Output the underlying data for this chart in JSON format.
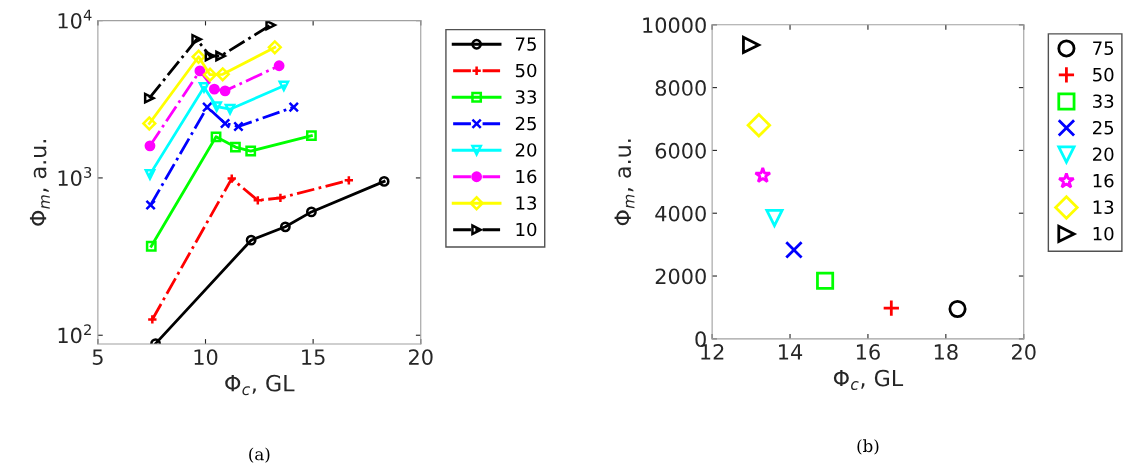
{
  "chart_data": [
    {
      "type": "line",
      "xlabel": "Φ$_{c}$, GL",
      "ylabel": "Φ$_{m}$, a.u.",
      "log": "y",
      "xlim": [
        5,
        20
      ],
      "xticks": [
        5,
        10,
        15,
        20
      ],
      "ylim": [
        88,
        10000
      ],
      "yticks": [
        {
          "value": 100,
          "label": "10$^{2}$"
        },
        {
          "value": 1000,
          "label": "10$^{3}$"
        },
        {
          "value": 10000,
          "label": "10$^{4}$"
        }
      ],
      "grid": false,
      "legend": "right",
      "annotations": [
        "(a)"
      ],
      "series": [
        {
          "name": "75",
          "color": "#000000",
          "marker": "circle",
          "line_style": "solid",
          "x": [
            7.68,
            12.12,
            13.71,
            14.92,
            18.3
          ],
          "values": [
            88.5,
            402,
            489,
            608,
            950
          ]
        },
        {
          "name": "50",
          "color": "#ff0000",
          "marker": "plus",
          "line_style": "dashdot",
          "x": [
            7.53,
            11.22,
            12.43,
            13.48,
            16.66
          ],
          "values": [
            126,
            990,
            720,
            746,
            965
          ]
        },
        {
          "name": "33",
          "color": "#00ff00",
          "marker": "square",
          "line_style": "solid",
          "x": [
            7.48,
            10.49,
            11.39,
            12.1,
            14.92
          ],
          "values": [
            368,
            1825,
            1570,
            1482,
            1855
          ]
        },
        {
          "name": "25",
          "color": "#0000ff",
          "marker": "x",
          "line_style": "dashdot",
          "x": [
            7.45,
            10.08,
            10.91,
            11.53,
            14.1
          ],
          "values": [
            673,
            2818,
            2218,
            2122,
            2818
          ]
        },
        {
          "name": "20",
          "color": "#00ffff",
          "marker": "triangle_down",
          "line_style": "solid",
          "x": [
            7.42,
            9.93,
            10.52,
            11.14,
            13.64
          ],
          "values": [
            1052,
            3767,
            2838,
            2734,
            3845
          ]
        },
        {
          "name": "16",
          "color": "#ff00ff",
          "marker": "dot",
          "line_style": "dashdot",
          "x": [
            7.42,
            9.74,
            10.41,
            10.91,
            13.42
          ],
          "values": [
            1600,
            4787,
            3664,
            3575,
            5165
          ]
        },
        {
          "name": "13",
          "color": "#ffff00",
          "marker": "diamond",
          "line_style": "solid",
          "x": [
            7.39,
            9.68,
            10.21,
            10.8,
            13.22
          ],
          "values": [
            2218,
            5888,
            4528,
            4557,
            6760
          ]
        },
        {
          "name": "10",
          "color": "#000000",
          "marker": "triangle_right",
          "line_style": "dashdot",
          "x": [
            7.39,
            9.59,
            10.21,
            10.7,
            13.03
          ],
          "values": [
            3213,
            7600,
            5955,
            5955,
            9360
          ]
        }
      ]
    },
    {
      "type": "scatter",
      "xlabel": "Φ$_{c}$, GL",
      "ylabel": "Φ$_{m}$, a.u.",
      "xlim": [
        12,
        20
      ],
      "xticks": [
        12,
        14,
        16,
        18,
        20
      ],
      "ylim": [
        0,
        10000
      ],
      "yticks": [
        0,
        2000,
        4000,
        6000,
        8000,
        10000
      ],
      "grid": false,
      "legend": "right",
      "annotations": [
        "(b)"
      ],
      "series": [
        {
          "name": "75",
          "color": "#000000",
          "marker": "circle",
          "x": [
            18.3
          ],
          "values": [
            950
          ]
        },
        {
          "name": "50",
          "color": "#ff0000",
          "marker": "plus",
          "x": [
            16.6
          ],
          "values": [
            980
          ]
        },
        {
          "name": "33",
          "color": "#00ff00",
          "marker": "square",
          "x": [
            14.9
          ],
          "values": [
            1850
          ]
        },
        {
          "name": "25",
          "color": "#0000ff",
          "marker": "x",
          "x": [
            14.1
          ],
          "values": [
            2830
          ]
        },
        {
          "name": "20",
          "color": "#00ffff",
          "marker": "triangle_down",
          "x": [
            13.6
          ],
          "values": [
            3850
          ]
        },
        {
          "name": "16",
          "color": "#ff00ff",
          "marker": "asterisk",
          "x": [
            13.3
          ],
          "values": [
            5200
          ]
        },
        {
          "name": "13",
          "color": "#ffff00",
          "marker": "diamond",
          "x": [
            13.2
          ],
          "values": [
            6800
          ]
        },
        {
          "name": "10",
          "color": "#000000",
          "marker": "triangle_right",
          "x": [
            13.0
          ],
          "values": [
            9360
          ]
        }
      ]
    }
  ]
}
